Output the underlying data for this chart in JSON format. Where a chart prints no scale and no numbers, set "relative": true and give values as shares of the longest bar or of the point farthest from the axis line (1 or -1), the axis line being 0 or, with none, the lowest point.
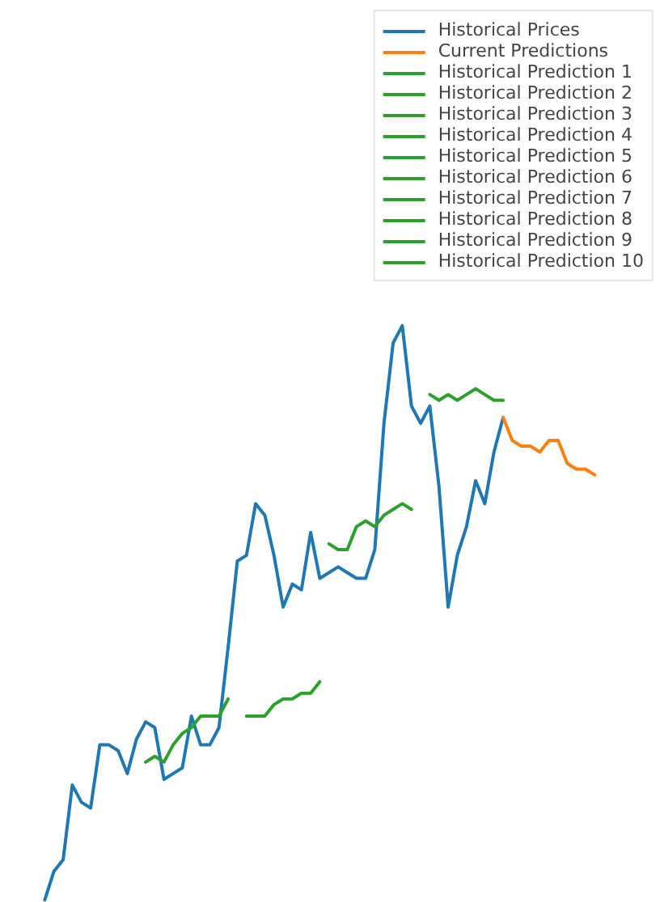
{
  "chart_data": {
    "type": "line",
    "relative": true,
    "legend": "top right",
    "grid": false,
    "categories": [
      null,
      null,
      null,
      null,
      null,
      null,
      null,
      null,
      null,
      null,
      null,
      null,
      null,
      null,
      null,
      null,
      null,
      null,
      null,
      null,
      null,
      null,
      null,
      null,
      null,
      null,
      null,
      null,
      null,
      null,
      null,
      null,
      null,
      null,
      null,
      null,
      null,
      null,
      null,
      null,
      null,
      null,
      null,
      null,
      null,
      null,
      null,
      null,
      null,
      null,
      null,
      null,
      null,
      null,
      null,
      null,
      null,
      null,
      null,
      null,
      null
    ],
    "series": [
      {
        "name": "Historical Prices",
        "color": "#1f77b4",
        "values": [
          0,
          0.05,
          0.07,
          0.2,
          0.17,
          0.16,
          0.27,
          0.27,
          0.26,
          0.22,
          0.28,
          0.31,
          0.3,
          0.21,
          0.22,
          0.23,
          0.32,
          0.27,
          0.27,
          0.3,
          0.44,
          0.59,
          0.6,
          0.69,
          0.67,
          0.6,
          0.51,
          0.55,
          0.54,
          0.64,
          0.56,
          0.57,
          0.58,
          0.57,
          0.56,
          0.56,
          0.61,
          0.83,
          0.97,
          1,
          0.86,
          0.83,
          0.86,
          0.72,
          0.51,
          0.6,
          0.65,
          0.73,
          0.69,
          0.78,
          0.84,
          null,
          null,
          null,
          null,
          null,
          null,
          null,
          null,
          null,
          null
        ]
      },
      {
        "name": "Current Predictions",
        "color": "#ff7f0e",
        "values": [
          null,
          null,
          null,
          null,
          null,
          null,
          null,
          null,
          null,
          null,
          null,
          null,
          null,
          null,
          null,
          null,
          null,
          null,
          null,
          null,
          null,
          null,
          null,
          null,
          null,
          null,
          null,
          null,
          null,
          null,
          null,
          null,
          null,
          null,
          null,
          null,
          null,
          null,
          null,
          null,
          null,
          null,
          null,
          null,
          null,
          null,
          null,
          null,
          null,
          null,
          0.84,
          0.8,
          0.79,
          0.79,
          0.78,
          0.8,
          0.8,
          0.76,
          0.75,
          0.75,
          0.74
        ]
      },
      {
        "name": "Historical Prediction 1",
        "color": "#2ca02c",
        "values": [
          null,
          null,
          null,
          null,
          null,
          null,
          null,
          null,
          null,
          null,
          null,
          0.24,
          0.25,
          0.24,
          0.27,
          0.29,
          0.3,
          0.32,
          0.32,
          0.32,
          0.35,
          null,
          null,
          null,
          null,
          null,
          null,
          null,
          null,
          null,
          null,
          null,
          null,
          null,
          null,
          null,
          null,
          null,
          null,
          null,
          null,
          null,
          null,
          null,
          null,
          null,
          null,
          null,
          null,
          null,
          null,
          null,
          null,
          null,
          null,
          null,
          null,
          null,
          null,
          null,
          null
        ]
      },
      {
        "name": "Historical Prediction 2",
        "color": "#2ca02c",
        "values": [
          null,
          null,
          null,
          null,
          null,
          null,
          null,
          null,
          null,
          null,
          null,
          null,
          null,
          null,
          null,
          null,
          null,
          null,
          null,
          null,
          null,
          null,
          0.32,
          0.32,
          0.32,
          0.34,
          0.35,
          0.35,
          0.36,
          0.36,
          0.38,
          null,
          null,
          null,
          null,
          null,
          null,
          null,
          null,
          null,
          null,
          null,
          null,
          null,
          null,
          null,
          null,
          null,
          null,
          null,
          null,
          null,
          null,
          null,
          null,
          null,
          null,
          null,
          null,
          null,
          null
        ]
      },
      {
        "name": "Historical Prediction 3",
        "color": "#2ca02c",
        "values": [
          null,
          null,
          null,
          null,
          null,
          null,
          null,
          null,
          null,
          null,
          null,
          null,
          null,
          null,
          null,
          null,
          null,
          null,
          null,
          null,
          null,
          null,
          null,
          null,
          null,
          null,
          null,
          null,
          null,
          null,
          null,
          0.62,
          0.61,
          0.61,
          0.65,
          0.66,
          0.65,
          0.67,
          0.68,
          0.69,
          0.68,
          null,
          null,
          null,
          null,
          null,
          null,
          null,
          null,
          null,
          null,
          null,
          null,
          null,
          null,
          null,
          null,
          null,
          null,
          null,
          null
        ]
      },
      {
        "name": "Historical Prediction 4",
        "color": "#2ca02c",
        "values": [
          null,
          null,
          null,
          null,
          null,
          null,
          null,
          null,
          null,
          null,
          null,
          null,
          null,
          null,
          null,
          null,
          null,
          null,
          null,
          null,
          null,
          null,
          null,
          null,
          null,
          null,
          null,
          null,
          null,
          null,
          null,
          null,
          null,
          null,
          null,
          null,
          null,
          null,
          null,
          null,
          null,
          null,
          0.88,
          0.87,
          0.88,
          0.87,
          0.88,
          0.89,
          0.88,
          0.87,
          0.87,
          null,
          null,
          null,
          null,
          null,
          null,
          null,
          null,
          null,
          null
        ]
      },
      {
        "name": "Historical Prediction 5",
        "color": "#2ca02c",
        "values": [
          null,
          null,
          null,
          null,
          null,
          null,
          null,
          null,
          null,
          null,
          null,
          null,
          null,
          null,
          null,
          null,
          null,
          null,
          null,
          null,
          null,
          null,
          null,
          null,
          null,
          null,
          null,
          null,
          null,
          null,
          null,
          null,
          null,
          null,
          null,
          null,
          null,
          null,
          null,
          null,
          null,
          null,
          null,
          null,
          null,
          null,
          null,
          null,
          null,
          null,
          null,
          null,
          null,
          null,
          null,
          null,
          null,
          null,
          null,
          null,
          null
        ]
      },
      {
        "name": "Historical Prediction 6",
        "color": "#2ca02c",
        "values": [
          null,
          null,
          null,
          null,
          null,
          null,
          null,
          null,
          null,
          null,
          null,
          null,
          null,
          null,
          null,
          null,
          null,
          null,
          null,
          null,
          null,
          null,
          null,
          null,
          null,
          null,
          null,
          null,
          null,
          null,
          null,
          null,
          null,
          null,
          null,
          null,
          null,
          null,
          null,
          null,
          null,
          null,
          null,
          null,
          null,
          null,
          null,
          null,
          null,
          null,
          null,
          null,
          null,
          null,
          null,
          null,
          null,
          null,
          null,
          null,
          null
        ]
      },
      {
        "name": "Historical Prediction 7",
        "color": "#2ca02c",
        "values": [
          null,
          null,
          null,
          null,
          null,
          null,
          null,
          null,
          null,
          null,
          null,
          null,
          null,
          null,
          null,
          null,
          null,
          null,
          null,
          null,
          null,
          null,
          null,
          null,
          null,
          null,
          null,
          null,
          null,
          null,
          null,
          null,
          null,
          null,
          null,
          null,
          null,
          null,
          null,
          null,
          null,
          null,
          null,
          null,
          null,
          null,
          null,
          null,
          null,
          null,
          null,
          null,
          null,
          null,
          null,
          null,
          null,
          null,
          null,
          null,
          null
        ]
      },
      {
        "name": "Historical Prediction 8",
        "color": "#2ca02c",
        "values": [
          null,
          null,
          null,
          null,
          null,
          null,
          null,
          null,
          null,
          null,
          null,
          null,
          null,
          null,
          null,
          null,
          null,
          null,
          null,
          null,
          null,
          null,
          null,
          null,
          null,
          null,
          null,
          null,
          null,
          null,
          null,
          null,
          null,
          null,
          null,
          null,
          null,
          null,
          null,
          null,
          null,
          null,
          null,
          null,
          null,
          null,
          null,
          null,
          null,
          null,
          null,
          null,
          null,
          null,
          null,
          null,
          null,
          null,
          null,
          null,
          null
        ]
      },
      {
        "name": "Historical Prediction 9",
        "color": "#2ca02c",
        "values": [
          null,
          null,
          null,
          null,
          null,
          null,
          null,
          null,
          null,
          null,
          null,
          null,
          null,
          null,
          null,
          null,
          null,
          null,
          null,
          null,
          null,
          null,
          null,
          null,
          null,
          null,
          null,
          null,
          null,
          null,
          null,
          null,
          null,
          null,
          null,
          null,
          null,
          null,
          null,
          null,
          null,
          null,
          null,
          null,
          null,
          null,
          null,
          null,
          null,
          null,
          null,
          null,
          null,
          null,
          null,
          null,
          null,
          null,
          null,
          null,
          null
        ]
      },
      {
        "name": "Historical Prediction 10",
        "color": "#2ca02c",
        "values": [
          null,
          null,
          null,
          null,
          null,
          null,
          null,
          null,
          null,
          null,
          null,
          null,
          null,
          null,
          null,
          null,
          null,
          null,
          null,
          null,
          null,
          null,
          null,
          null,
          null,
          null,
          null,
          null,
          null,
          null,
          null,
          null,
          null,
          null,
          null,
          null,
          null,
          null,
          null,
          null,
          null,
          null,
          null,
          null,
          null,
          null,
          null,
          null,
          null,
          null,
          null,
          null,
          null,
          null,
          null,
          null,
          null,
          null,
          null,
          null,
          null
        ]
      }
    ]
  }
}
